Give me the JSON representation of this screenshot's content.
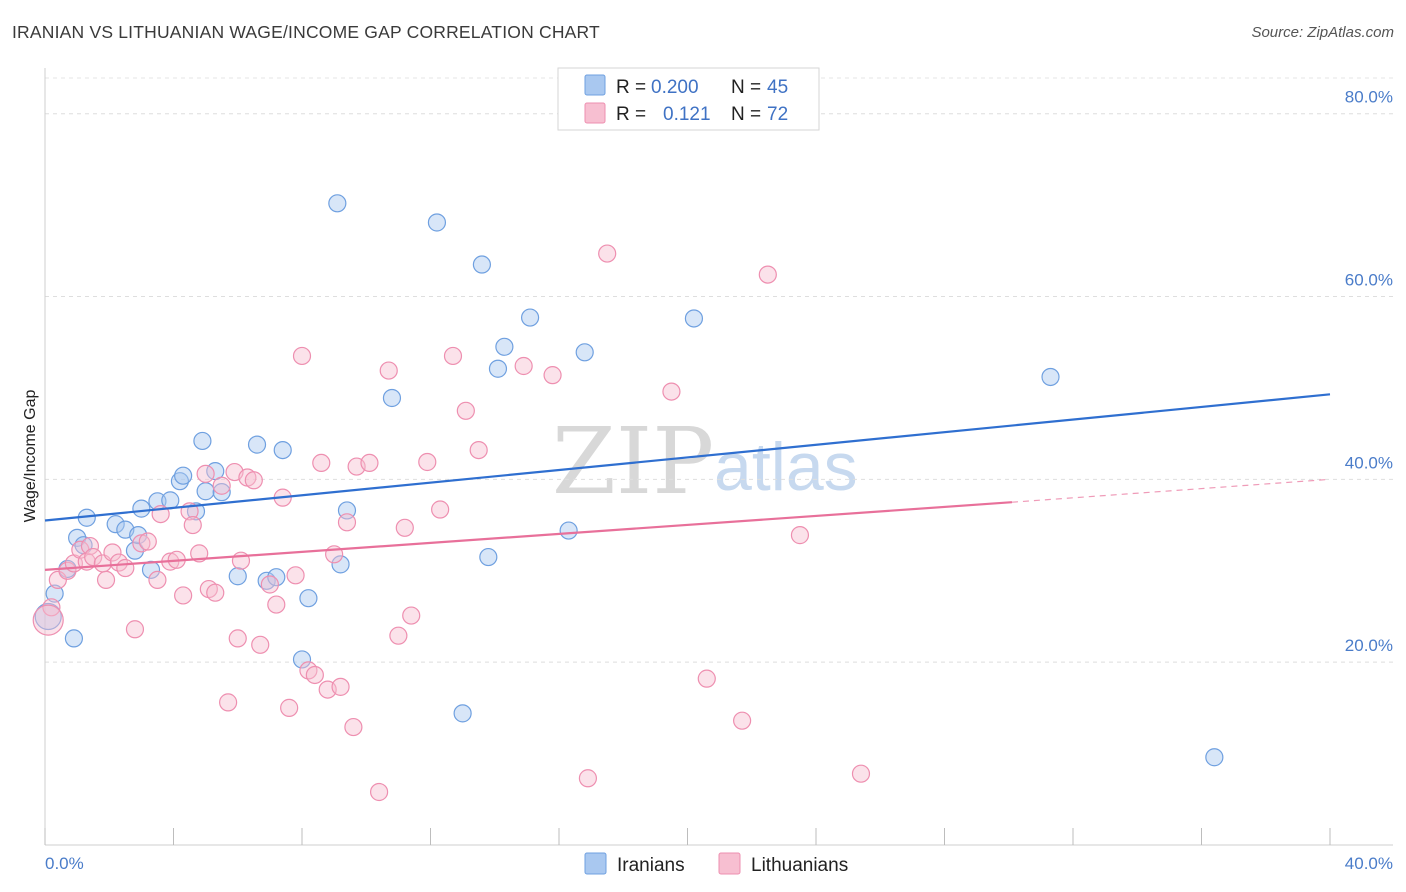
{
  "title": "IRANIAN VS LITHUANIAN WAGE/INCOME GAP CORRELATION CHART",
  "source": "Source: ZipAtlas.com",
  "watermark": {
    "zip": "ZIP",
    "atlas": "atlas"
  },
  "legend": {
    "rows": [
      {
        "r_label": "R =",
        "r_value": "0.200",
        "n_label": "N =",
        "n_value": "45",
        "color": "#a9c8f0",
        "stroke": "#6fa0e0"
      },
      {
        "r_label": "R =",
        "r_value": "0.121",
        "n_label": "N =",
        "n_value": "72",
        "color": "#f7bfd1",
        "stroke": "#ee8fb0"
      }
    ]
  },
  "chart_data": {
    "type": "scatter",
    "xlabel": "",
    "ylabel": "Wage/Income Gap",
    "xlim": [
      0,
      40
    ],
    "ylim": [
      0,
      85
    ],
    "x_tick_labels": [
      "0.0%",
      "40.0%"
    ],
    "y_ticks": [
      20,
      40,
      60,
      80
    ],
    "y_tick_labels": [
      "20.0%",
      "40.0%",
      "60.0%",
      "80.0%"
    ],
    "grid": true,
    "series": [
      {
        "name": "Iranians",
        "color": "#6fa0e0",
        "fill": "#a9c8f0",
        "line_color": "#2f6fd0",
        "trend": {
          "x": [
            0,
            40
          ],
          "y": [
            35.5,
            49.3
          ]
        },
        "points": [
          [
            0.1,
            25.0
          ],
          [
            0.3,
            27.5
          ],
          [
            0.7,
            30.2
          ],
          [
            0.9,
            22.6
          ],
          [
            1.0,
            33.6
          ],
          [
            1.2,
            32.8
          ],
          [
            1.3,
            35.8
          ],
          [
            2.2,
            35.1
          ],
          [
            2.5,
            34.5
          ],
          [
            2.8,
            32.2
          ],
          [
            2.9,
            33.9
          ],
          [
            3.0,
            36.8
          ],
          [
            3.3,
            30.1
          ],
          [
            3.5,
            37.6
          ],
          [
            3.9,
            37.7
          ],
          [
            4.2,
            39.8
          ],
          [
            4.3,
            40.4
          ],
          [
            4.7,
            36.5
          ],
          [
            4.9,
            44.2
          ],
          [
            5.0,
            38.7
          ],
          [
            5.3,
            40.9
          ],
          [
            5.5,
            38.6
          ],
          [
            6.0,
            29.4
          ],
          [
            6.6,
            43.8
          ],
          [
            6.9,
            28.9
          ],
          [
            7.2,
            29.3
          ],
          [
            7.4,
            43.2
          ],
          [
            8.0,
            20.3
          ],
          [
            8.2,
            27.0
          ],
          [
            9.2,
            30.7
          ],
          [
            9.4,
            36.6
          ],
          [
            9.1,
            70.2
          ],
          [
            10.8,
            48.9
          ],
          [
            12.2,
            68.1
          ],
          [
            13.0,
            14.4
          ],
          [
            13.6,
            63.5
          ],
          [
            13.8,
            31.5
          ],
          [
            14.1,
            52.1
          ],
          [
            14.3,
            54.5
          ],
          [
            15.1,
            57.7
          ],
          [
            16.8,
            53.9
          ],
          [
            16.3,
            34.4
          ],
          [
            20.2,
            57.6
          ],
          [
            31.3,
            51.2
          ],
          [
            36.4,
            9.6
          ]
        ]
      },
      {
        "name": "Lithuanians",
        "color": "#ee8fb0",
        "fill": "#f7bfd1",
        "line_color": "#e8709a",
        "trend": {
          "x": [
            0,
            30.1
          ],
          "y": [
            30.1,
            37.5
          ]
        },
        "trend_dashed": {
          "x": [
            30.1,
            40
          ],
          "y": [
            37.5,
            40.0
          ]
        },
        "points": [
          [
            0.2,
            26.0
          ],
          [
            0.4,
            29.0
          ],
          [
            0.7,
            30.0
          ],
          [
            0.9,
            30.8
          ],
          [
            1.1,
            32.3
          ],
          [
            1.3,
            31.0
          ],
          [
            1.4,
            32.7
          ],
          [
            1.5,
            31.5
          ],
          [
            1.8,
            30.8
          ],
          [
            1.9,
            29.0
          ],
          [
            2.1,
            32.0
          ],
          [
            2.3,
            30.9
          ],
          [
            2.5,
            30.3
          ],
          [
            2.8,
            23.6
          ],
          [
            3.0,
            33.0
          ],
          [
            3.2,
            33.2
          ],
          [
            3.5,
            29.0
          ],
          [
            3.6,
            36.2
          ],
          [
            3.9,
            31.0
          ],
          [
            4.1,
            31.2
          ],
          [
            4.3,
            27.3
          ],
          [
            4.5,
            36.5
          ],
          [
            4.6,
            35.0
          ],
          [
            4.8,
            31.9
          ],
          [
            5.0,
            40.6
          ],
          [
            5.1,
            28.0
          ],
          [
            5.3,
            27.6
          ],
          [
            5.5,
            39.3
          ],
          [
            5.7,
            15.6
          ],
          [
            5.9,
            40.8
          ],
          [
            6.0,
            22.6
          ],
          [
            6.1,
            31.1
          ],
          [
            6.3,
            40.2
          ],
          [
            6.5,
            39.9
          ],
          [
            6.7,
            21.9
          ],
          [
            7.0,
            28.5
          ],
          [
            7.2,
            26.3
          ],
          [
            7.4,
            38.0
          ],
          [
            7.6,
            15.0
          ],
          [
            7.8,
            29.5
          ],
          [
            8.0,
            53.5
          ],
          [
            8.2,
            19.1
          ],
          [
            8.4,
            18.6
          ],
          [
            8.6,
            41.8
          ],
          [
            8.8,
            17.0
          ],
          [
            9.0,
            31.8
          ],
          [
            9.2,
            17.3
          ],
          [
            9.4,
            35.3
          ],
          [
            9.6,
            12.9
          ],
          [
            9.7,
            41.4
          ],
          [
            10.1,
            41.8
          ],
          [
            10.4,
            5.8
          ],
          [
            10.7,
            51.9
          ],
          [
            11.0,
            22.9
          ],
          [
            11.2,
            34.7
          ],
          [
            11.4,
            25.1
          ],
          [
            11.9,
            41.9
          ],
          [
            12.3,
            36.7
          ],
          [
            12.7,
            53.5
          ],
          [
            13.1,
            47.5
          ],
          [
            13.5,
            43.2
          ],
          [
            14.9,
            52.4
          ],
          [
            15.8,
            51.4
          ],
          [
            16.9,
            7.3
          ],
          [
            17.5,
            64.7
          ],
          [
            19.5,
            49.6
          ],
          [
            20.6,
            18.2
          ],
          [
            21.7,
            13.6
          ],
          [
            22.5,
            62.4
          ],
          [
            23.5,
            33.9
          ],
          [
            25.4,
            7.8
          ],
          [
            0.1,
            24.6
          ]
        ]
      }
    ]
  }
}
